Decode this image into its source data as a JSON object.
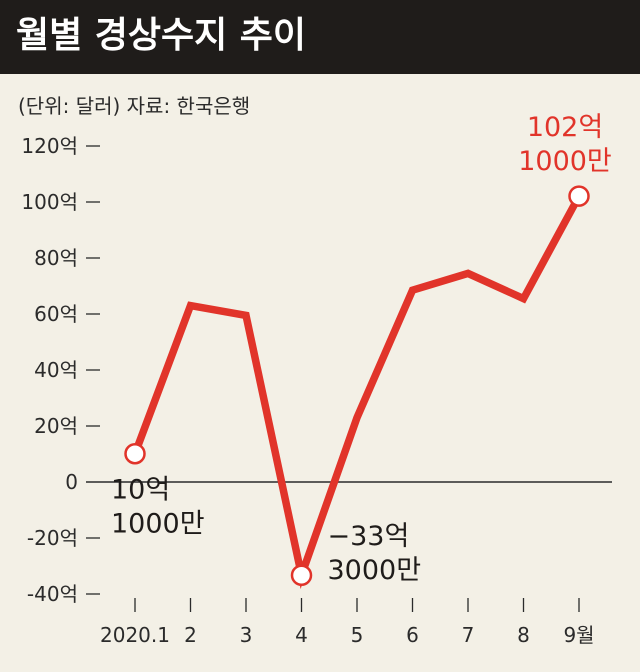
{
  "page": {
    "title": "월별 경상수지 추이",
    "unit_note": "(단위: 달러) 자료: 한국은행"
  },
  "colors": {
    "line": "#e1342a",
    "title_bg": "#1f1c1a",
    "background": "#f3f0e6",
    "axis": "#2b2b2b"
  },
  "chart_data": {
    "type": "line",
    "title": "월별 경상수지 추이",
    "xlabel": "",
    "ylabel": "",
    "categories": [
      "2020.1",
      "2",
      "3",
      "4",
      "5",
      "6",
      "7",
      "8",
      "9월"
    ],
    "series": [
      {
        "values": [
          10.1,
          63,
          59.5,
          -33.3,
          23,
          68.5,
          74.5,
          65.5,
          102.1
        ]
      }
    ],
    "ylim": [
      -40,
      120
    ],
    "y_ticks": [
      {
        "value": 120,
        "label": "120억"
      },
      {
        "value": 100,
        "label": "100억"
      },
      {
        "value": 80,
        "label": "80억"
      },
      {
        "value": 60,
        "label": "60억"
      },
      {
        "value": 40,
        "label": "40억"
      },
      {
        "value": 20,
        "label": "20억"
      },
      {
        "value": 0,
        "label": "0"
      },
      {
        "value": -20,
        "label": "-20억"
      },
      {
        "value": -40,
        "label": "-40억"
      }
    ],
    "annotations": [
      {
        "index": 0,
        "lines": [
          "10억",
          "1000만"
        ],
        "highlight": false
      },
      {
        "index": 3,
        "lines": [
          "−33억",
          "3000만"
        ],
        "highlight": false
      },
      {
        "index": 8,
        "lines": [
          "102억",
          "1000만"
        ],
        "highlight": true
      }
    ],
    "grid": false,
    "legend": "none"
  }
}
